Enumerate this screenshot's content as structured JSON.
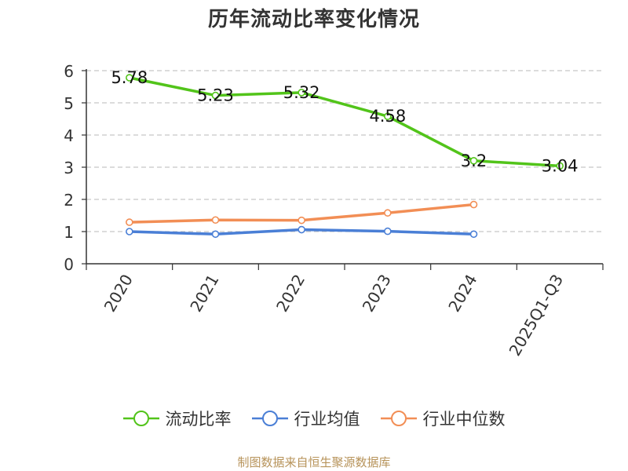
{
  "title": "历年流动比率变化情况",
  "source_text": "制图数据来自恒生聚源数据库",
  "chart_data": {
    "type": "line",
    "categories": [
      "2020",
      "2021",
      "2022",
      "2023",
      "2024",
      "2025Q1-Q3"
    ],
    "ylim": [
      0,
      6
    ],
    "y_ticks": [
      "0",
      "1",
      "2",
      "3",
      "4",
      "5",
      "6"
    ],
    "grid": true,
    "legend_position": "bottom",
    "series": [
      {
        "name": "流动比率",
        "color": "#52c41a",
        "values": [
          5.78,
          5.23,
          5.32,
          4.58,
          3.2,
          3.04
        ],
        "labels": [
          "5.78",
          "5.23",
          "5.32",
          "4.58",
          "3.2",
          "3.04"
        ]
      },
      {
        "name": "行业均值",
        "color": "#4a7fd6",
        "values": [
          1.0,
          0.92,
          1.06,
          1.01,
          0.92,
          null
        ]
      },
      {
        "name": "行业中位数",
        "color": "#f28e55",
        "values": [
          1.29,
          1.36,
          1.35,
          1.58,
          1.84,
          null
        ]
      }
    ]
  }
}
